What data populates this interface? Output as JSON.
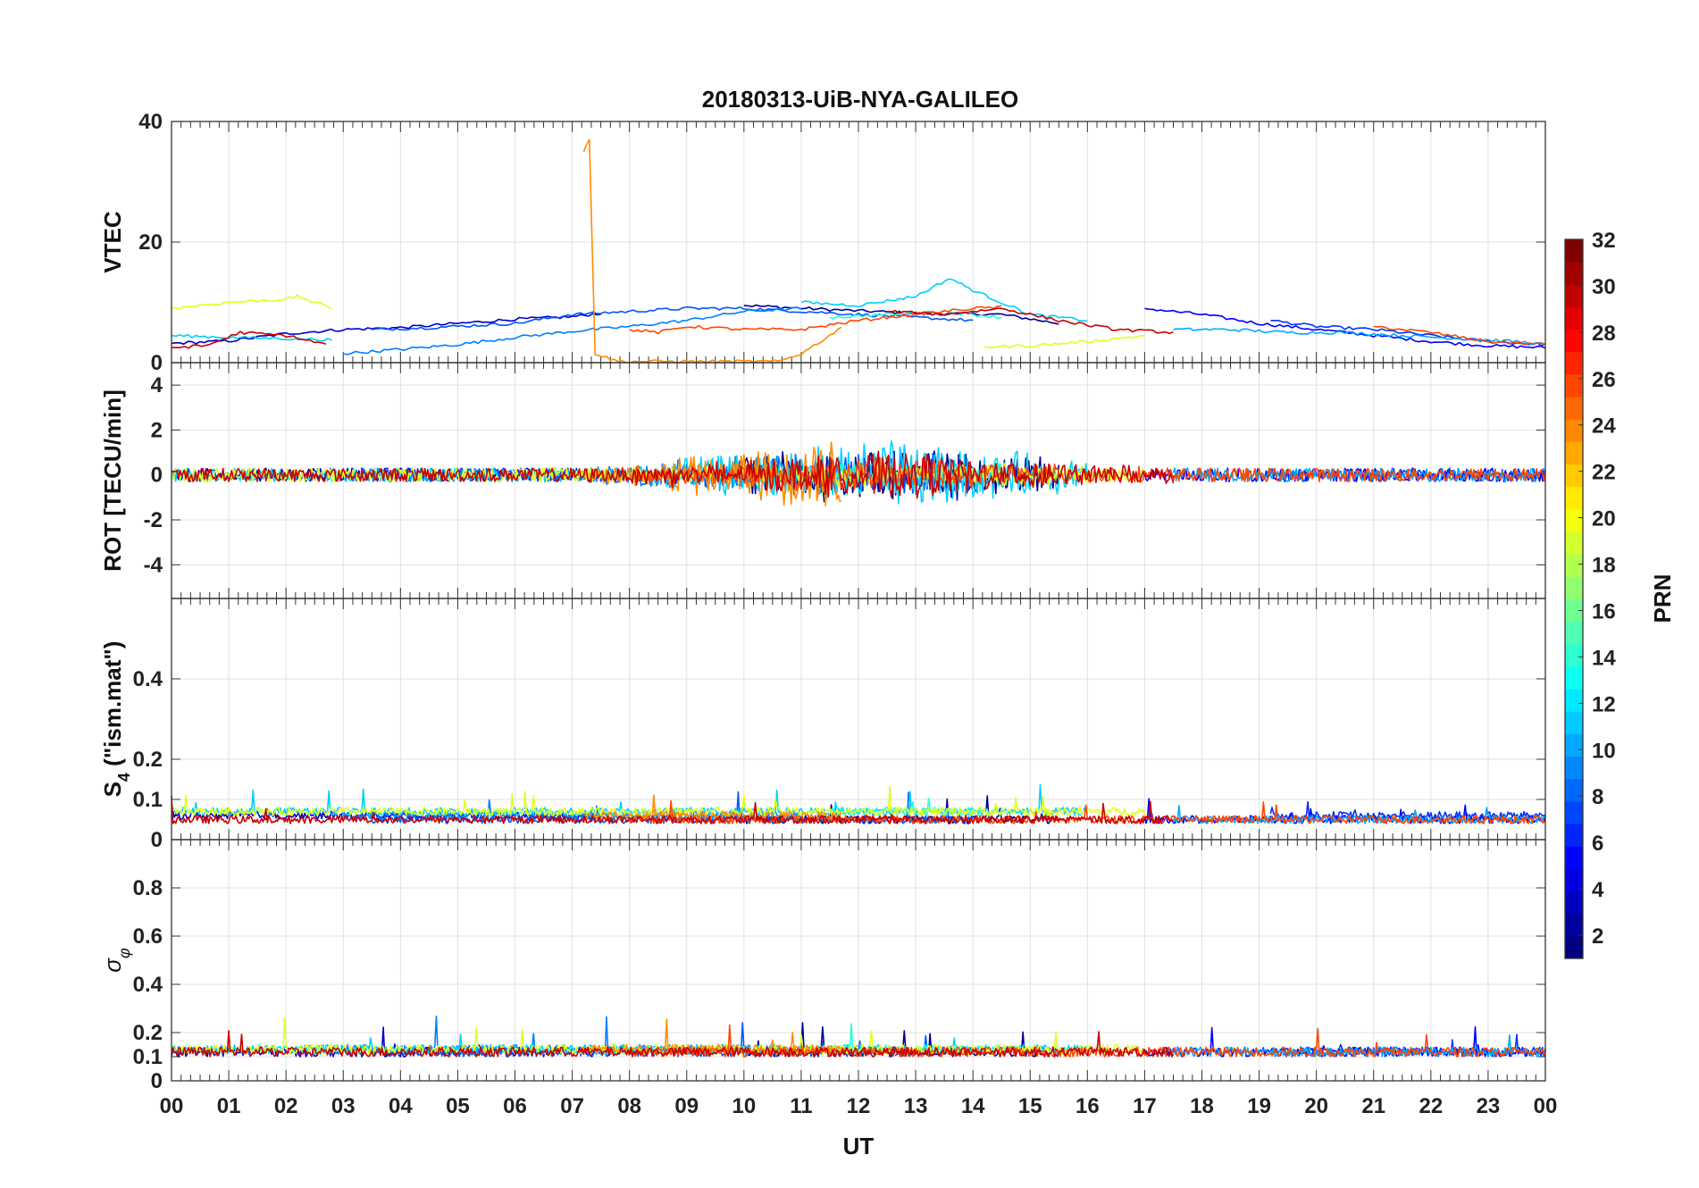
{
  "chart_data": {
    "type": "line",
    "title": "20180313-UiB-NYA-GALILEO",
    "xlabel": "UT",
    "x_tick_labels": [
      "00",
      "01",
      "02",
      "03",
      "04",
      "05",
      "06",
      "07",
      "08",
      "09",
      "10",
      "11",
      "12",
      "13",
      "14",
      "15",
      "16",
      "17",
      "18",
      "19",
      "20",
      "21",
      "22",
      "23",
      "00"
    ],
    "xlim": [
      0,
      24
    ],
    "grid": true,
    "panels": [
      {
        "ylabel": "VTEC",
        "ylim": [
          0,
          40
        ],
        "ticks": [
          "0",
          "20",
          "40"
        ],
        "tick_values": [
          0,
          20,
          40
        ]
      },
      {
        "ylabel": "ROT [TECU/min]",
        "ylim": [
          -5.5,
          5
        ],
        "ticks": [
          "-4",
          "-2",
          "0",
          "2",
          "4"
        ],
        "tick_values": [
          -4,
          -2,
          0,
          2,
          4
        ]
      },
      {
        "ylabel_main": "S",
        "ylabel_sub": "4",
        "ylabel_rest": " (\"ism.mat\")",
        "ylim": [
          0,
          0.6
        ],
        "ticks": [
          "0",
          "0.1",
          "0.2",
          "0.4"
        ],
        "tick_values": [
          0,
          0.1,
          0.2,
          0.4
        ]
      },
      {
        "ylabel_main": "σ",
        "ylabel_sub": "φ",
        "ylim": [
          0,
          1
        ],
        "ticks": [
          "0",
          "0.1",
          "0.2",
          "0.4",
          "0.6",
          "0.8"
        ],
        "tick_values": [
          0,
          0.1,
          0.2,
          0.4,
          0.6,
          0.8
        ]
      }
    ],
    "colorbar": {
      "label": "PRN",
      "range": [
        1,
        32
      ],
      "ticks": [
        "2",
        "4",
        "6",
        "8",
        "10",
        "12",
        "14",
        "16",
        "18",
        "20",
        "22",
        "24",
        "26",
        "28",
        "30",
        "32"
      ],
      "tick_values": [
        2,
        4,
        6,
        8,
        10,
        12,
        14,
        16,
        18,
        20,
        22,
        24,
        26,
        28,
        30,
        32
      ],
      "colormap": "jet"
    },
    "series": [
      {
        "prn": 1,
        "color": "#00008f",
        "vtec": [
          [
            10.0,
            9.5
          ],
          [
            11.5,
            8.8
          ],
          [
            13.0,
            8.2
          ],
          [
            14.5,
            8.0
          ],
          [
            15.5,
            6.5
          ]
        ],
        "rot_amp": 1.2,
        "s4": [
          [
            10,
            0.05
          ],
          [
            13,
            0.06
          ],
          [
            16,
            0.05
          ]
        ],
        "s4_base": 0.05,
        "sigma_base": 0.12
      },
      {
        "prn": 2,
        "color": "#0000c8",
        "vtec": [
          [
            0.0,
            3.2
          ],
          [
            1.0,
            3.6
          ],
          [
            2.0,
            4.8
          ],
          [
            3.0,
            5.5
          ],
          [
            4.0,
            5.8
          ],
          [
            5.0,
            6.5
          ],
          [
            6.0,
            7.2
          ],
          [
            7.0,
            7.6
          ],
          [
            7.5,
            8.2
          ]
        ],
        "rot_amp": 0.9,
        "s4_base": 0.06,
        "sigma_base": 0.12
      },
      {
        "prn": 3,
        "color": "#0000ff",
        "vtec": [
          [
            17.0,
            9.0
          ],
          [
            18.0,
            8.0
          ],
          [
            19.0,
            6.5
          ],
          [
            20.0,
            5.5
          ],
          [
            21.0,
            4.5
          ],
          [
            22.0,
            3.5
          ],
          [
            23.0,
            2.8
          ],
          [
            24.0,
            2.5
          ]
        ],
        "rot_amp": 0.3,
        "s4_base": 0.05,
        "sigma_base": 0.12
      },
      {
        "prn": 4,
        "color": "#0030ff",
        "vtec": [
          [
            19.2,
            7.0
          ],
          [
            20.0,
            6.0
          ],
          [
            21.0,
            5.5
          ],
          [
            22.0,
            4.5
          ],
          [
            23.0,
            3.5
          ],
          [
            24.0,
            3.0
          ]
        ],
        "rot_amp": 0.3,
        "s4_base": 0.06,
        "sigma_base": 0.12
      },
      {
        "prn": 5,
        "color": "#0055ff",
        "vtec": [
          [
            3.5,
            5.5
          ],
          [
            4.5,
            5.8
          ],
          [
            6.0,
            6.5
          ],
          [
            7.0,
            8.0
          ],
          [
            8.0,
            8.5
          ],
          [
            9.0,
            9.0
          ],
          [
            10.0,
            9.0
          ],
          [
            11.0,
            8.5
          ],
          [
            12.0,
            8.0
          ],
          [
            13.0,
            7.5
          ],
          [
            14.0,
            7.0
          ]
        ],
        "rot_amp": 0.8,
        "s4_base": 0.05,
        "sigma_base": 0.12
      },
      {
        "prn": 7,
        "color": "#0080ff",
        "vtec": [
          [
            3.0,
            1.5
          ],
          [
            4.0,
            2.2
          ],
          [
            5.0,
            3.0
          ],
          [
            6.0,
            4.2
          ],
          [
            7.0,
            5.2
          ],
          [
            8.0,
            6.0
          ],
          [
            9.0,
            7.0
          ],
          [
            10.0,
            8.5
          ],
          [
            11.0,
            9.0
          ]
        ],
        "rot_amp": 1.3,
        "s4_base": 0.06,
        "sigma_base": 0.13
      },
      {
        "prn": 9,
        "color": "#00a8ff",
        "vtec": [
          [
            17.5,
            5.5
          ],
          [
            18.5,
            5.5
          ],
          [
            19.5,
            5.0
          ],
          [
            20.5,
            5.0
          ],
          [
            21.5,
            4.5
          ],
          [
            22.5,
            4.0
          ],
          [
            23.5,
            3.5
          ],
          [
            24.0,
            3.0
          ]
        ],
        "rot_amp": 0.8,
        "s4_base": 0.05,
        "sigma_base": 0.12
      },
      {
        "prn": 11,
        "color": "#00d0ff",
        "vtec": [
          [
            0.0,
            4.5
          ],
          [
            1.0,
            4.2
          ],
          [
            2.0,
            4.0
          ],
          [
            2.8,
            3.8
          ],
          [
            11.0,
            10.0
          ],
          [
            12.0,
            9.5
          ],
          [
            13.0,
            11.0
          ],
          [
            13.6,
            14.0
          ],
          [
            14.0,
            12.0
          ],
          [
            15.0,
            8.0
          ],
          [
            16.0,
            7.0
          ]
        ],
        "rot_amp": 1.4,
        "s4_base": 0.07,
        "sigma_base": 0.13
      },
      {
        "prn": 12,
        "color": "#20ffe0",
        "vtec": [
          [
            11.5,
            7.5
          ],
          [
            12.5,
            8.0
          ],
          [
            13.5,
            8.5
          ],
          [
            14.5,
            7.5
          ]
        ],
        "rot_amp": 0.6,
        "s4_base": 0.07,
        "sigma_base": 0.13
      },
      {
        "prn": 19,
        "color": "#e0ff20",
        "vtec": [
          [
            0.0,
            9.0
          ],
          [
            1.0,
            10.0
          ],
          [
            2.0,
            10.5
          ],
          [
            2.2,
            11.0
          ],
          [
            2.8,
            9.0
          ],
          [
            14.2,
            2.6
          ],
          [
            15.0,
            2.8
          ],
          [
            16.0,
            3.5
          ],
          [
            17.0,
            4.5
          ]
        ],
        "rot_amp": 0.4,
        "s4_base": 0.07,
        "sigma_base": 0.13
      },
      {
        "prn": 23,
        "color": "#ff8c00",
        "vtec": [
          [
            7.2,
            35.0
          ],
          [
            7.3,
            37.0
          ],
          [
            7.4,
            1.5
          ],
          [
            7.8,
            0.2
          ],
          [
            10.6,
            0.2
          ],
          [
            11.0,
            1.5
          ],
          [
            11.5,
            4.5
          ],
          [
            11.7,
            6.0
          ]
        ],
        "rot_amp": 1.8,
        "s4_base": 0.06,
        "sigma_base": 0.13
      },
      {
        "prn": 25,
        "color": "#ff4800",
        "vtec": [
          [
            8.0,
            5.5
          ],
          [
            8.5,
            5.0
          ],
          [
            9.0,
            6.0
          ],
          [
            10.0,
            5.5
          ],
          [
            11.0,
            5.5
          ],
          [
            12.0,
            7.0
          ],
          [
            13.0,
            8.0
          ],
          [
            14.0,
            9.0
          ],
          [
            14.5,
            9.2
          ],
          [
            21.0,
            6.0
          ],
          [
            22.0,
            5.0
          ],
          [
            23.0,
            3.5
          ],
          [
            24.0,
            3.0
          ]
        ],
        "rot_amp": 0.6,
        "s4_base": 0.05,
        "sigma_base": 0.12
      },
      {
        "prn": 31,
        "color": "#c80000",
        "vtec": [
          [
            0.0,
            2.5
          ],
          [
            0.6,
            2.8
          ],
          [
            1.2,
            5.0
          ],
          [
            2.0,
            4.5
          ],
          [
            2.7,
            3.0
          ],
          [
            12.5,
            8.5
          ],
          [
            13.5,
            8.0
          ],
          [
            14.5,
            9.0
          ],
          [
            15.5,
            7.0
          ],
          [
            16.5,
            5.5
          ],
          [
            17.5,
            5.0
          ]
        ],
        "rot_amp": 0.9,
        "s4_base": 0.05,
        "sigma_base": 0.12
      }
    ]
  }
}
